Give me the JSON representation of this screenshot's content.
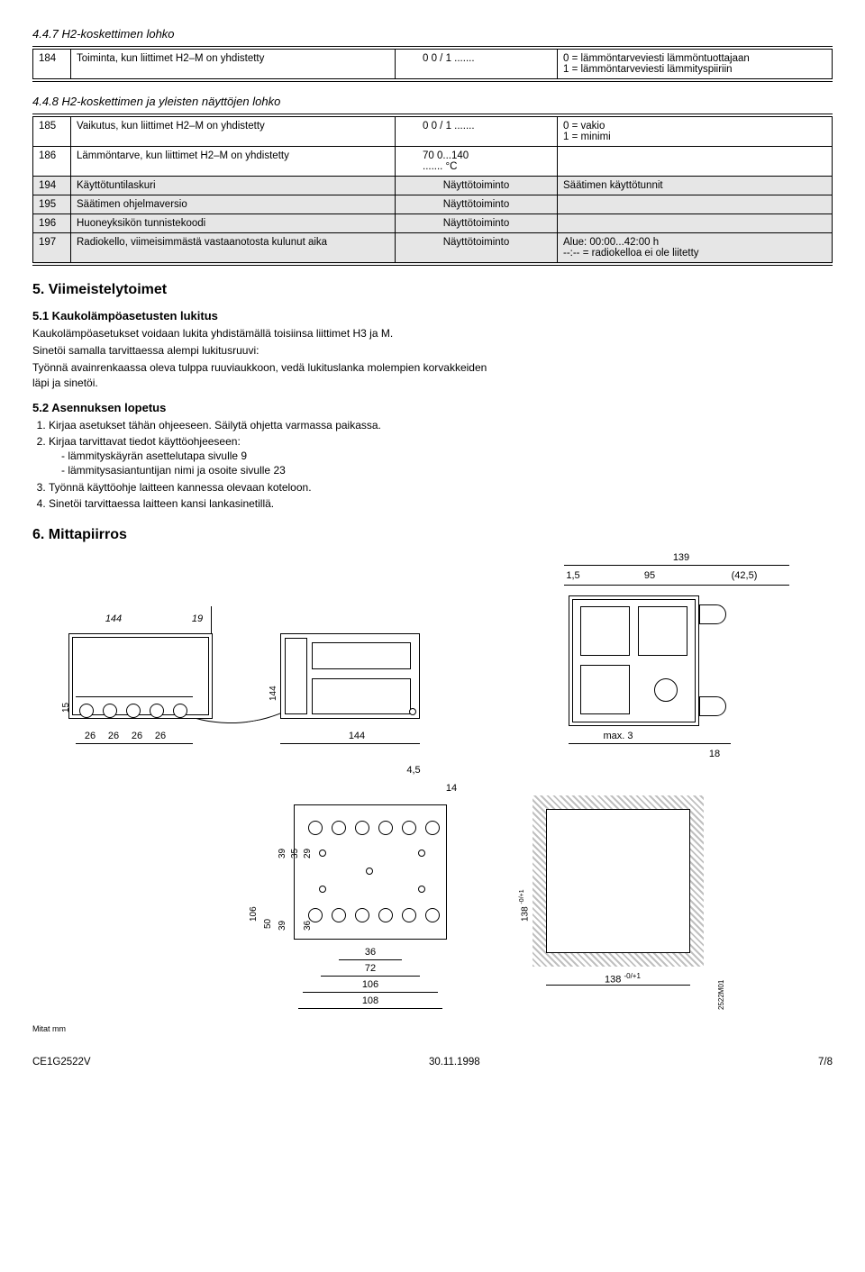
{
  "section447": {
    "heading": "4.4.7  H2-koskettimen lohko",
    "row": {
      "num": "184",
      "desc": "Toiminta, kun liittimet H2–M on yhdistetty",
      "val": "0        0 / 1 .......",
      "note": "0 = lämmöntarveviesti lämmöntuottajaan\n1 = lämmöntarveviesti lämmityspiiriin"
    }
  },
  "section448": {
    "heading": "4.4.8  H2-koskettimen ja yleisten näyttöjen lohko",
    "rows": [
      {
        "num": "185",
        "desc": "Vaikutus, kun liittimet H2–M on yhdistetty",
        "val": "0        0 / 1 .......",
        "note": "0 = vakio\n1 = minimi",
        "shaded": false
      },
      {
        "num": "186",
        "desc": "Lämmöntarve, kun liittimet H2–M on yhdistetty",
        "val": "70        0...140\n....... °C",
        "note": "",
        "shaded": false
      },
      {
        "num": "194",
        "desc": "Käyttötuntilaskuri",
        "val": "Näyttötoiminto",
        "note": "Säätimen käyttötunnit",
        "shaded": true
      },
      {
        "num": "195",
        "desc": "Säätimen ohjelmaversio",
        "val": "Näyttötoiminto",
        "note": "",
        "shaded": true
      },
      {
        "num": "196",
        "desc": "Huoneyksikön tunnistekoodi",
        "val": "Näyttötoiminto",
        "note": "",
        "shaded": true
      },
      {
        "num": "197",
        "desc": "Radiokello, viimeisimmästä vastaanotosta kulunut aika",
        "val": "Näyttötoiminto",
        "note": "Alue: 00:00...42:00 h\n--:--    = radiokelloa ei ole liitetty",
        "shaded": true
      }
    ]
  },
  "section5": {
    "heading": "5.  Viimeistelytoimet",
    "sub51": {
      "heading": "5.1  Kaukolämpöasetusten lukitus",
      "p1": "Kaukolämpöasetukset voidaan lukita yhdistämällä toisiinsa liittimet H3 ja M.",
      "p2": "Sinetöi samalla tarvittaessa alempi lukitusruuvi:",
      "p3": "Työnnä avainrenkaassa oleva tulppa ruuviaukkoon, vedä lukituslanka molempien korvakkeiden läpi ja sinetöi."
    },
    "sub52": {
      "heading": "5.2  Asennuksen lopetus",
      "items": [
        "Kirjaa asetukset tähän ohjeeseen. Säilytä ohjetta varmassa paikassa.",
        "Kirjaa tarvittavat tiedot käyttöohjeeseen:",
        "Työnnä käyttöohje laitteen kannessa olevaan koteloon.",
        "Sinetöi tarvittaessa laitteen kansi lankasinetillä."
      ],
      "subdash": [
        "lämmityskäyrän asettelutapa sivulle 9",
        "lämmitysasiantuntijan nimi ja osoite sivulle 23"
      ]
    }
  },
  "section6": {
    "heading": "6.  Mittapiirros",
    "dims": {
      "d139": "139",
      "d1_5": "1,5",
      "d95": "95",
      "d42_5": "(42,5)",
      "d144a": "144",
      "d19": "19",
      "d144b": "144",
      "d144c": "144",
      "d15": "15",
      "d26a": "26",
      "d26b": "26",
      "d26c": "26",
      "d26d": "26",
      "dmax3": "max. 3",
      "d18": "18",
      "d4_5": "4,5",
      "d14": "14",
      "d106a": "106",
      "d50": "50",
      "d39a": "39",
      "d39b": "39",
      "d35": "35",
      "d36a": "36",
      "d29": "29",
      "d36b": "36",
      "d72": "72",
      "d106b": "106",
      "d108": "108",
      "d138a": "138",
      "d138sup_a": "-0/+1",
      "d138b": "138",
      "d138sup_b": "-0/+1",
      "code": "2522M01"
    },
    "mits": "Mitat mm"
  },
  "footer": {
    "left": "CE1G2522V",
    "center": "30.11.1998",
    "right": "7/8"
  }
}
